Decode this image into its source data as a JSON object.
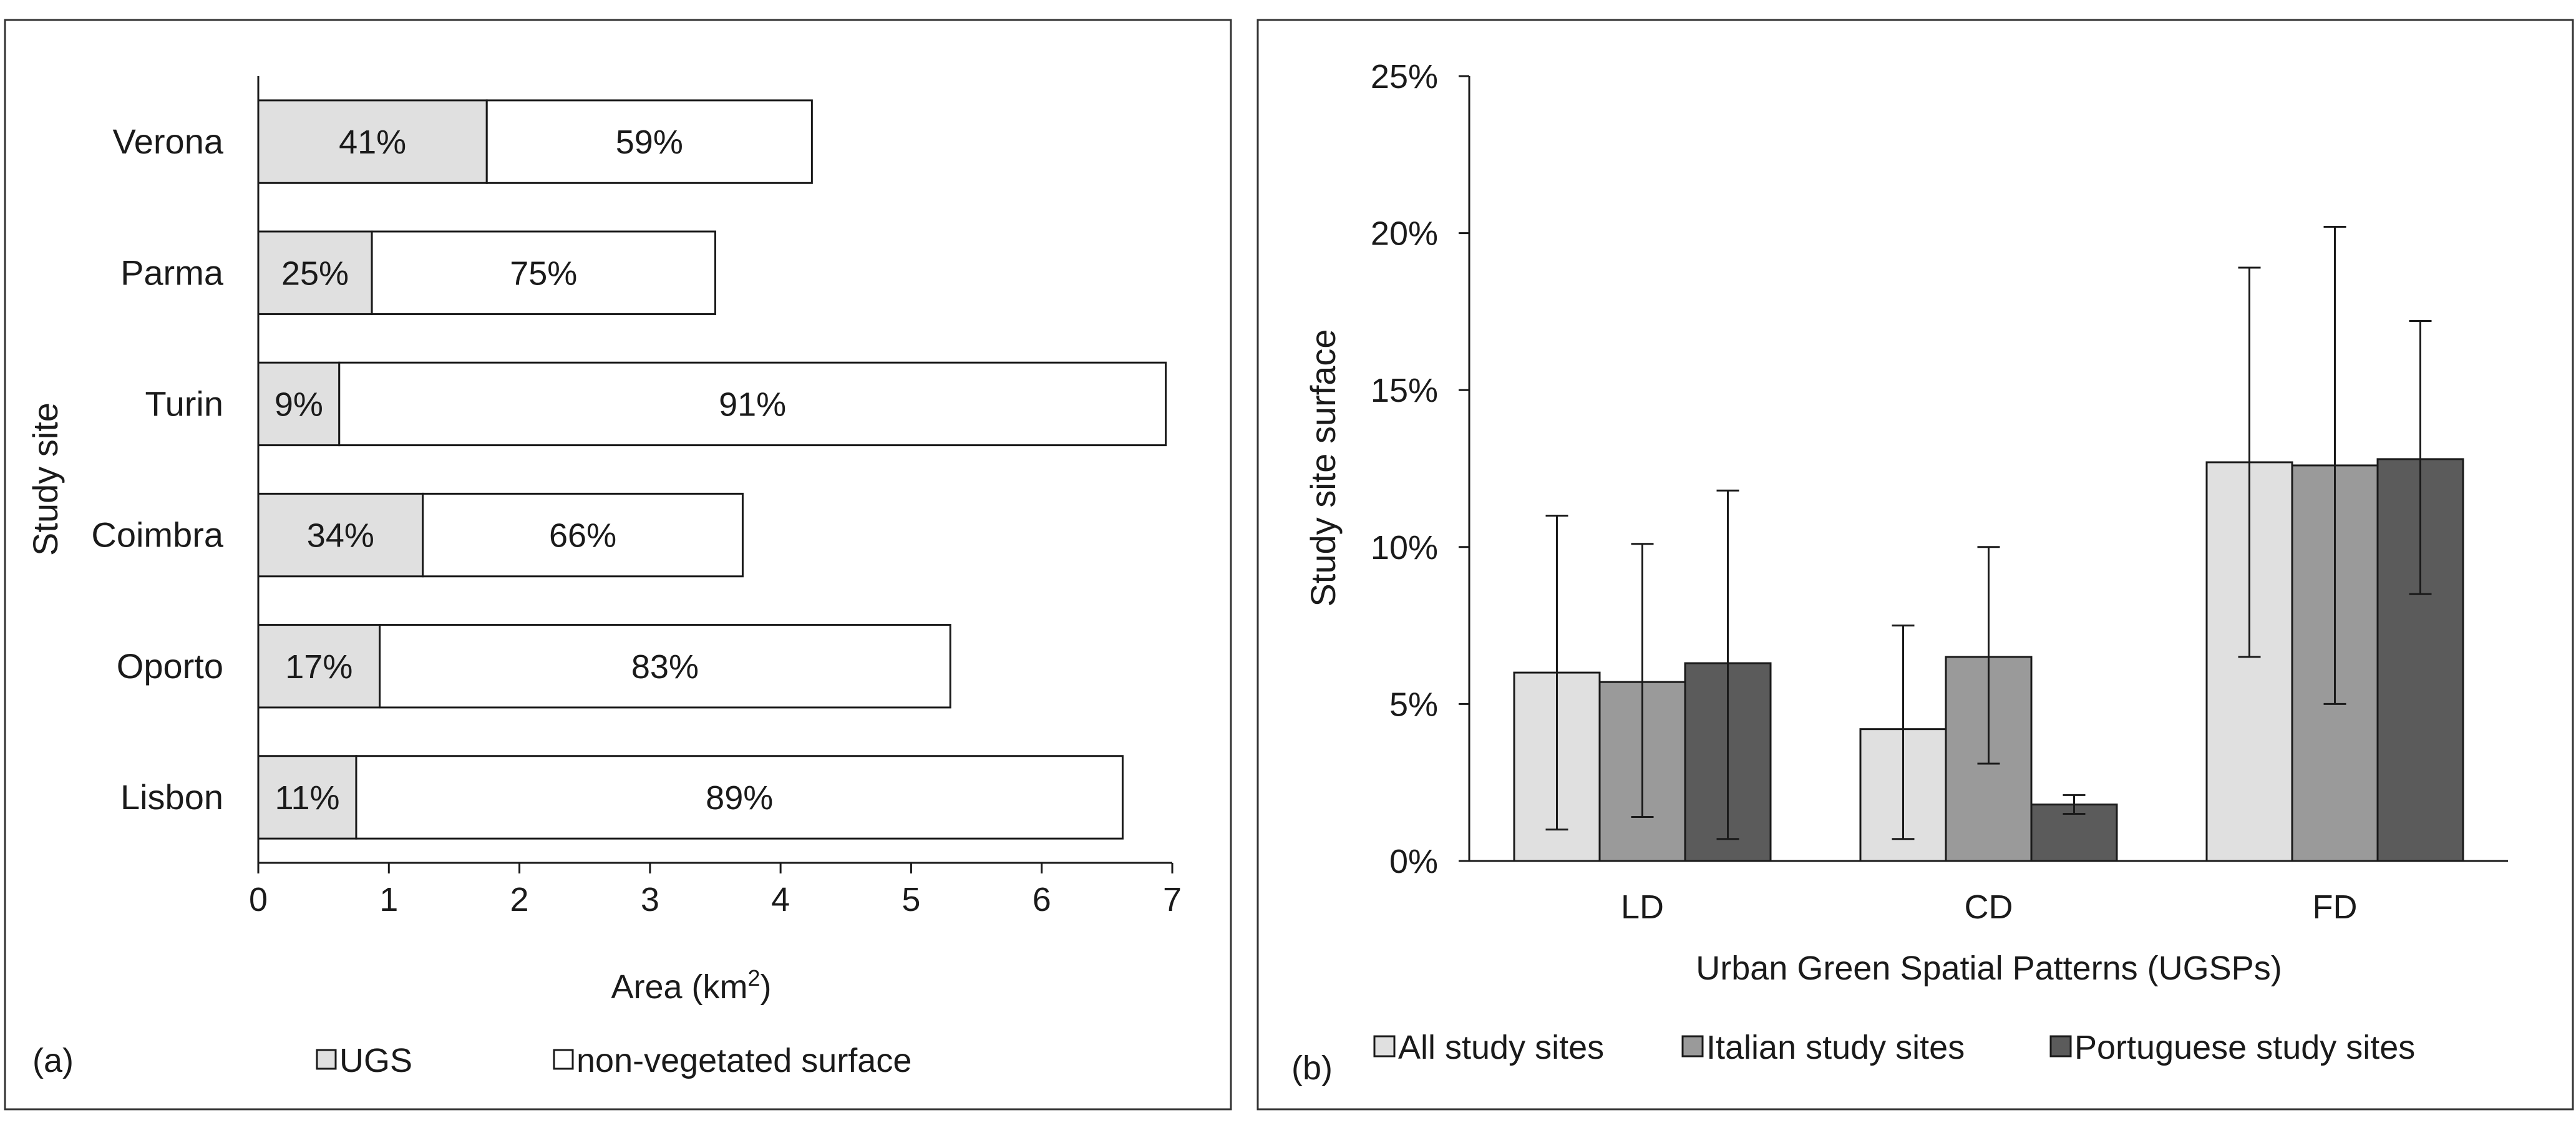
{
  "chart_data": [
    {
      "panel_label": "(a)",
      "type": "bar",
      "orientation": "horizontal",
      "stacked": true,
      "categories": [
        "Verona",
        "Parma",
        "Turin",
        "Coimbra",
        "Oporto",
        "Lisbon"
      ],
      "series": [
        {
          "name": "UGS",
          "values": [
            1.75,
            0.87,
            0.62,
            1.26,
            0.93,
            0.75
          ],
          "labels": [
            "41%",
            "25%",
            "9%",
            "34%",
            "17%",
            "11%"
          ],
          "color": "#e0e0e0"
        },
        {
          "name": "non-vegetated surface",
          "values": [
            2.49,
            2.63,
            6.33,
            2.45,
            4.37,
            5.87
          ],
          "labels": [
            "59%",
            "75%",
            "91%",
            "66%",
            "83%",
            "89%"
          ],
          "color": "#ffffff"
        }
      ],
      "xlabel": "Area (km",
      "xlabel_sup": "2",
      "xlabel_end": ")",
      "ylabel": "Study site",
      "xlim": [
        0,
        7
      ],
      "xticks": [
        0,
        1,
        2,
        3,
        4,
        5,
        6,
        7
      ],
      "legend": [
        "UGS",
        "non-vegetated surface"
      ],
      "legend_position": "bottom",
      "grid": false
    },
    {
      "panel_label": "(b)",
      "type": "bar",
      "orientation": "vertical",
      "categories": [
        "LD",
        "CD",
        "FD"
      ],
      "series": [
        {
          "name": "All study sites",
          "values": [
            6.0,
            4.2,
            12.7
          ],
          "err_low": [
            1.0,
            0.7,
            6.5
          ],
          "err_high": [
            11.0,
            7.5,
            18.9
          ],
          "color": "#e0e0e0"
        },
        {
          "name": "Italian study sites",
          "values": [
            5.7,
            6.5,
            12.6
          ],
          "err_low": [
            1.4,
            3.1,
            5.0
          ],
          "err_high": [
            10.1,
            10.0,
            20.2
          ],
          "color": "#9a9a9a"
        },
        {
          "name": "Portuguese study sites",
          "values": [
            6.3,
            1.8,
            12.8
          ],
          "err_low": [
            0.7,
            1.5,
            8.5
          ],
          "err_high": [
            11.8,
            2.1,
            17.2
          ],
          "color": "#5b5b5b"
        }
      ],
      "xlabel": "Urban Green Spatial Patterns (UGSPs)",
      "ylabel": "Study site surface",
      "ylim": [
        0,
        25
      ],
      "yticks": [
        0,
        5,
        10,
        15,
        20,
        25
      ],
      "ytick_labels": [
        "0%",
        "5%",
        "10%",
        "15%",
        "20%",
        "25%"
      ],
      "legend": [
        "All study sites",
        "Italian study sites",
        "Portuguese study sites"
      ],
      "legend_position": "bottom",
      "grid": false
    }
  ]
}
